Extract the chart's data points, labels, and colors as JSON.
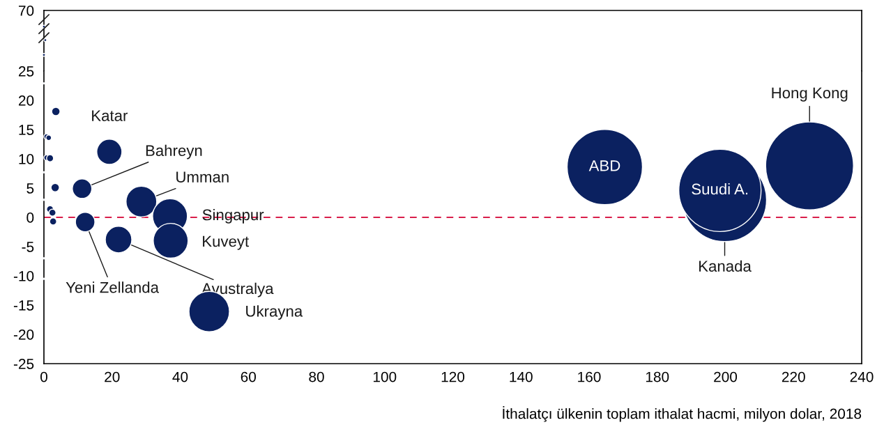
{
  "chart_data": [
    {
      "type": "scatter",
      "xlim": [
        0,
        240
      ],
      "ylim": [
        25,
        70
      ],
      "yticks": [
        25,
        70
      ],
      "tick_labels": "y",
      "grid": false,
      "color": "#0b2160",
      "x": [
        0,
        0.4,
        0
      ],
      "values": [
        58,
        48,
        37
      ]
    },
    {
      "type": "bubble",
      "xlim": [
        0,
        240
      ],
      "ylim": [
        -25,
        25
      ],
      "xticks": [
        0,
        20,
        40,
        60,
        80,
        100,
        120,
        140,
        160,
        180,
        200,
        220,
        240
      ],
      "yticks": [
        -25,
        -20,
        -15,
        -10,
        -5,
        0,
        5,
        10,
        15,
        20
      ],
      "grid": false,
      "color": "#0b2160",
      "xlabel": "İthalatçı ülkenin toplam ithalat hacmi, milyon dolar, 2018",
      "x": [
        0,
        3.5,
        0.8,
        1.4,
        0.8,
        1.8,
        0,
        3.3,
        0,
        1.8,
        2.5,
        2.7,
        0,
        0,
        19.2,
        11.2,
        28.6,
        37.0,
        12.1,
        21.9,
        37.2,
        48.5,
        164.6,
        199.8,
        198.4,
        224.7
      ],
      "values": [
        22.9,
        18.1,
        13.8,
        13.6,
        10.2,
        10.1,
        7.7,
        5.1,
        3.0,
        1.4,
        0.8,
        -0.7,
        -7.0,
        -10.5,
        11.2,
        4.9,
        2.7,
        0.2,
        -0.8,
        -3.8,
        -4.0,
        -16.1,
        8.6,
        3.0,
        4.6,
        8.8
      ],
      "sizes": [
        0.00025,
        0.009,
        0.004,
        0.004,
        0.004,
        0.0063,
        0.00025,
        0.009,
        0.00025,
        0.0063,
        0.0063,
        0.0063,
        0.00025,
        0.00025,
        0.082,
        0.049,
        0.122,
        0.157,
        0.049,
        0.091,
        0.157,
        0.212,
        0.735,
        0.907,
        0.877,
        1
      ],
      "ref_lines": [
        {
          "axis": "y",
          "value": 0,
          "color": "#d91e4b",
          "line_style": "dashed"
        }
      ],
      "annotations": [
        {
          "text": "Katar",
          "x": 19.2,
          "y": 11.2
        },
        {
          "text": "Bahreyn",
          "x": 11.2,
          "y": 4.9
        },
        {
          "text": "Umman",
          "x": 28.6,
          "y": 2.7
        },
        {
          "text": "Singapur",
          "x": 37.0,
          "y": 0.2
        },
        {
          "text": "Kuveyt",
          "x": 37.2,
          "y": -4.0
        },
        {
          "text": "Yeni Zellanda",
          "x": 12.1,
          "y": -0.8
        },
        {
          "text": "Avustralya",
          "x": 21.9,
          "y": -3.8
        },
        {
          "text": "Ukrayna",
          "x": 48.5,
          "y": -16.1
        },
        {
          "text": "ABD",
          "x": 164.6,
          "y": 8.6
        },
        {
          "text": "Suudi A.",
          "x": 198.4,
          "y": 4.6
        },
        {
          "text": "Kanada",
          "x": 199.8,
          "y": 3.0
        },
        {
          "text": "Hong Kong",
          "x": 224.7,
          "y": 8.8
        }
      ]
    }
  ]
}
